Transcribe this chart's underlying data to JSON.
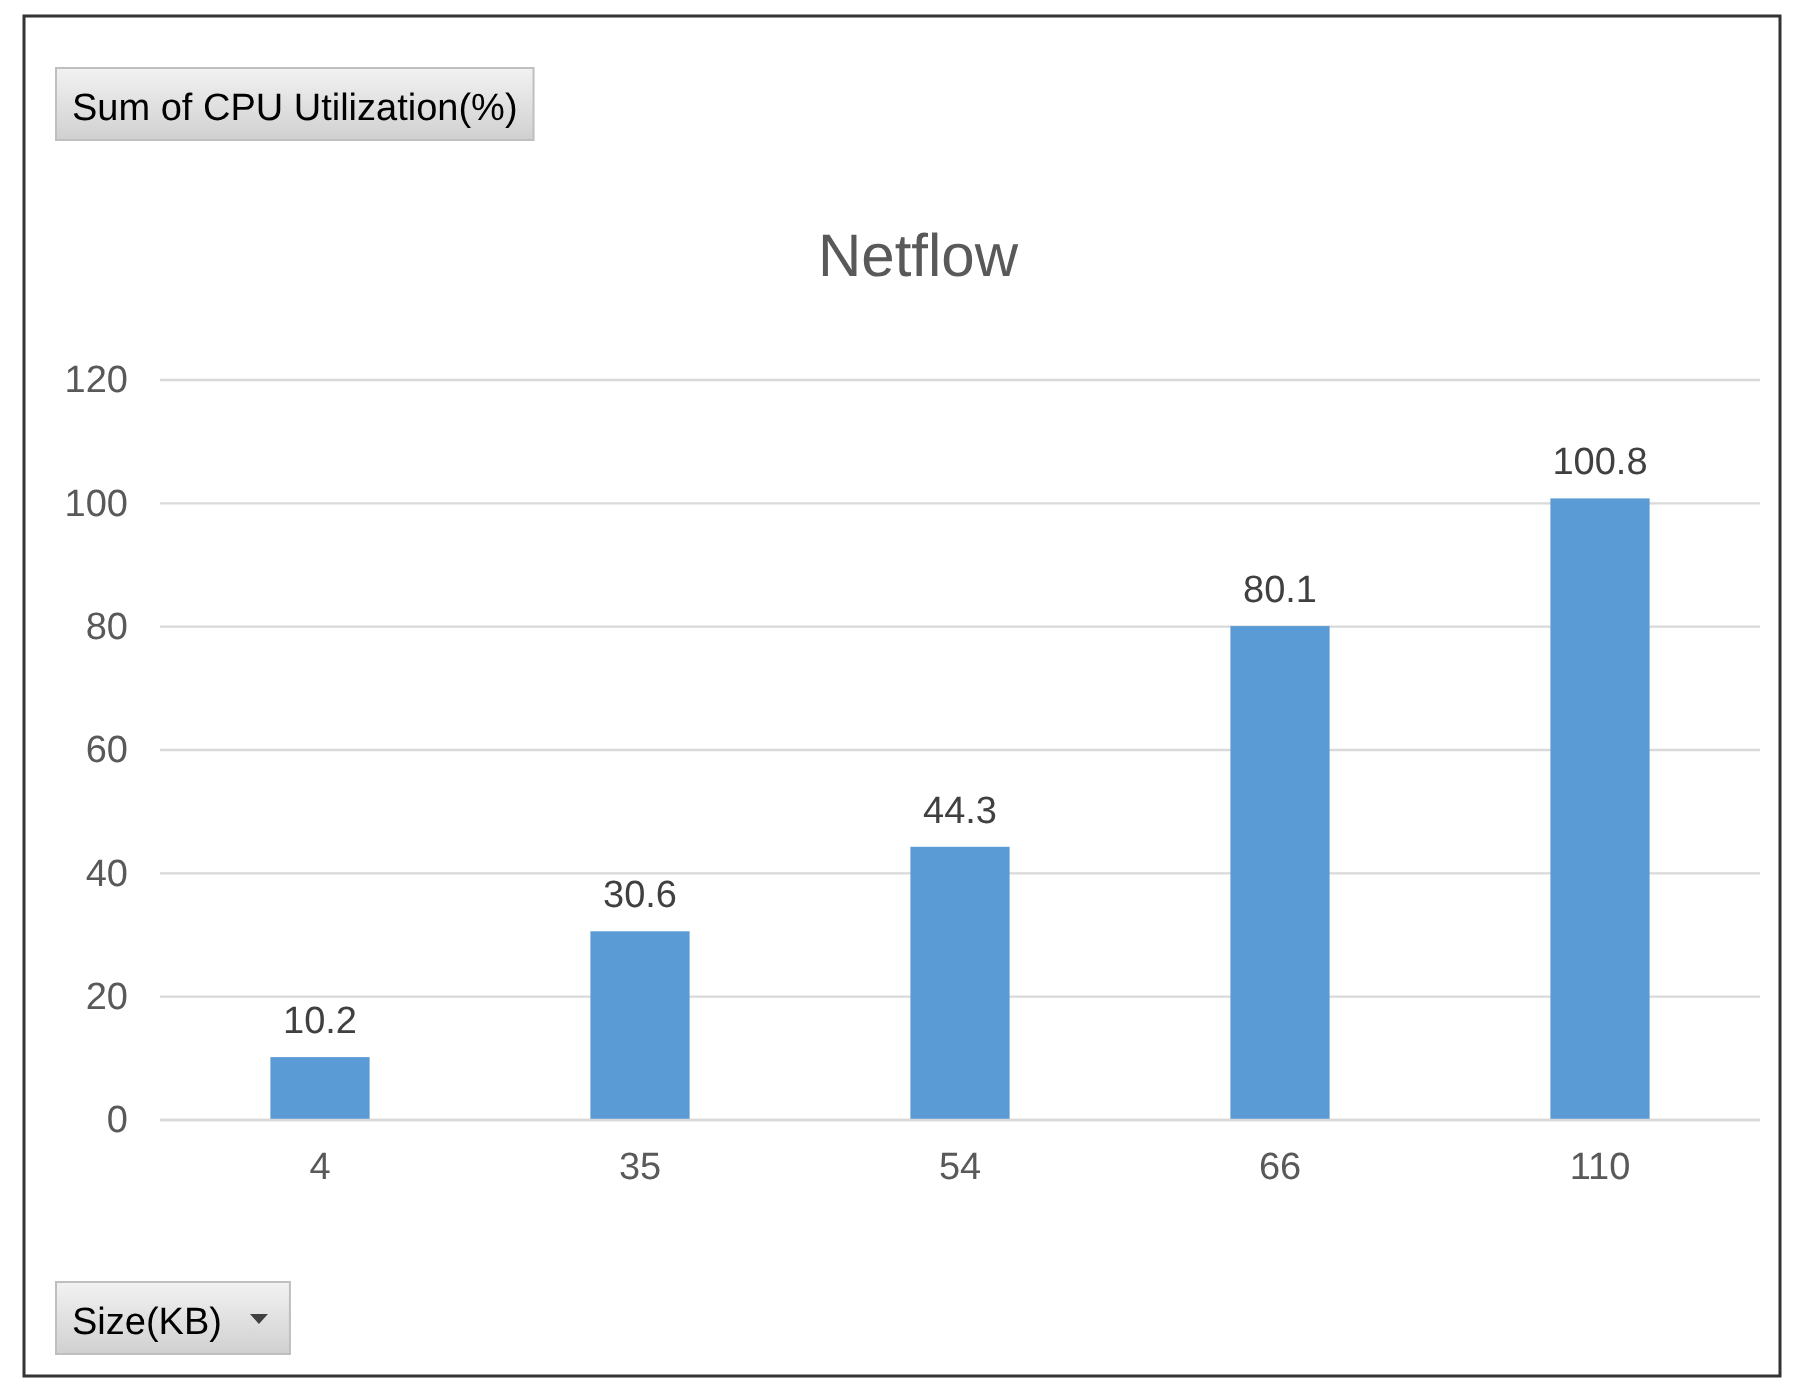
{
  "chart_data": {
    "type": "bar",
    "title": "Netflow",
    "xlabel": "Size(KB)",
    "annotations": [
      "Sum of CPU Utilization(%)"
    ],
    "categories": [
      "4",
      "35",
      "54",
      "66",
      "110"
    ],
    "values": [
      10.2,
      30.6,
      44.3,
      80.1,
      100.8
    ],
    "color": "#5b9bd5",
    "ylim": [
      0,
      120
    ],
    "yticks": [
      0,
      20,
      40,
      60,
      80,
      100,
      120
    ],
    "grid": "y",
    "data_labels": true
  }
}
